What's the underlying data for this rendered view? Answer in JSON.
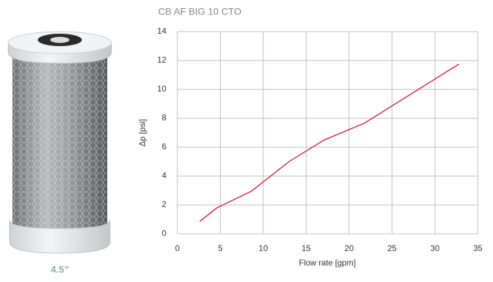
{
  "product_caption": "4.5”",
  "chart_data": {
    "type": "line",
    "title": "CB AF BIG 10 CTO",
    "x_label": "Flow rate [gpm]",
    "y_label": "Δp [psi]",
    "x": [
      2.6,
      4.6,
      8.6,
      13,
      17.1,
      21.8,
      32.8
    ],
    "series": [
      {
        "name": "CB AF BIG 10 CTO",
        "color": "#e3001b",
        "values": [
          0.86,
          1.8,
          2.95,
          5.0,
          6.5,
          7.67,
          11.76
        ]
      }
    ],
    "xlim": [
      0,
      35
    ],
    "xticks": [
      0,
      5,
      10,
      15,
      20,
      25,
      30,
      35
    ],
    "ylim": [
      0,
      14
    ],
    "yticks": [
      0,
      2,
      4,
      6,
      8,
      10,
      12,
      14
    ],
    "grid": true
  }
}
